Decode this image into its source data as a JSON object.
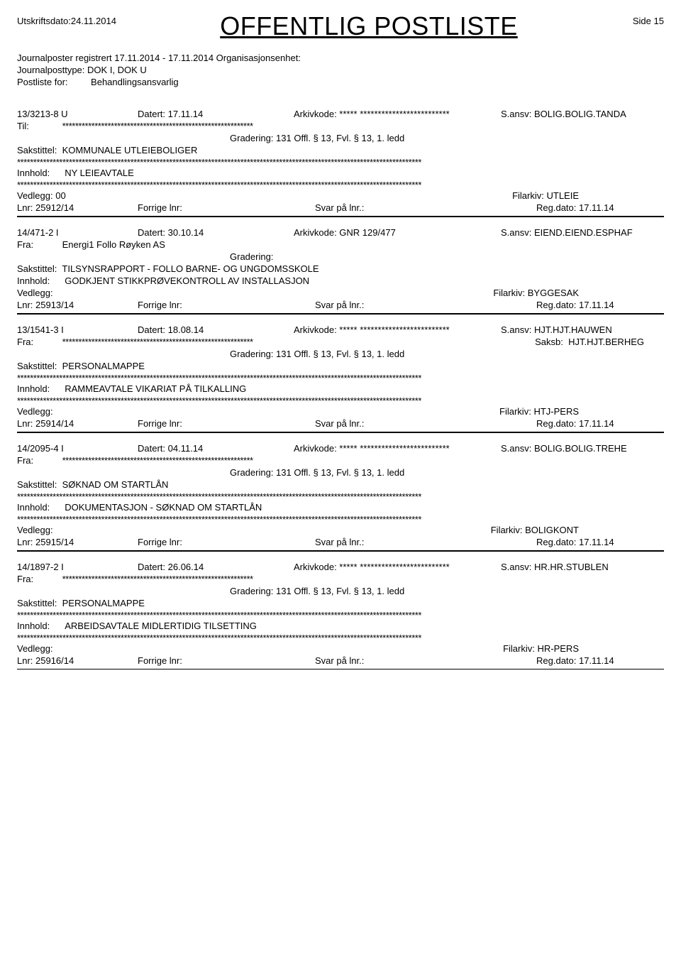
{
  "header": {
    "print_date_label": "Utskriftsdato:",
    "print_date": "24.11.2014",
    "title": "OFFENTLIG POSTLISTE",
    "page_label": "Side",
    "page_num": "15"
  },
  "meta": {
    "registered_label": "Journalposter registrert",
    "registered_range": "17.11.2014 - 17.11.2014",
    "org_label": "Organisasjonsenhet:",
    "jptype_label": "Journalposttype:",
    "jptype_value": "DOK I, DOK U",
    "postliste_label": "Postliste for:",
    "postliste_value": "Behandlingsansvarlig"
  },
  "labels": {
    "datert": "Datert:",
    "arkivkode": "Arkivkode:",
    "sansv": "S.ansv:",
    "til": "Til:",
    "fra": "Fra:",
    "gradering": "Gradering:",
    "sakstittel": "Sakstittel:",
    "innhold": "Innhold:",
    "vedlegg": "Vedlegg:",
    "filarkiv": "Filarkiv:",
    "lnr": "Lnr:",
    "forrige": "Forrige lnr:",
    "svar": "Svar på lnr.:",
    "regdato": "Reg.dato:",
    "saksb": "Saksb:"
  },
  "stars_short": "***********************************************************",
  "stars_med": "***** *************************",
  "stars_long": "*****************************************************************************************************************************",
  "entries": [
    {
      "id": "13/3213-8 U",
      "datert": "17.11.14",
      "arkivkode_stars": true,
      "arkivkode": "",
      "sansv": "BOLIG.BOLIG.TANDA",
      "party_label": "Til:",
      "party_stars": true,
      "gradering": "131 Offl. § 13, Fvl. § 13, 1. ledd",
      "sakstittel": "KOMMUNALE UTLEIEBOLIGER",
      "sak_stars": true,
      "innhold": "NY LEIEAVTALE",
      "innhold_stars": true,
      "vedlegg": "00",
      "filarkiv": "UTLEIE",
      "lnr": "25912/14",
      "regdato": "17.11.14",
      "thick": true
    },
    {
      "id": "14/471-2 I",
      "datert": "30.10.14",
      "arkivkode_stars": false,
      "arkivkode": "GNR 129/477",
      "sansv": "EIEND.EIEND.ESPHAF",
      "party_label": "Fra:",
      "party_value": "Energi1 Follo Røyken AS",
      "gradering": "",
      "sakstittel": "TILSYNSRAPPORT - FOLLO BARNE- OG UNGDOMSSKOLE",
      "sak_stars": false,
      "innhold": "GODKJENT STIKKPRØVEKONTROLL AV INSTALLASJON",
      "innhold_stars": false,
      "vedlegg": "",
      "filarkiv": "BYGGESAK",
      "lnr": "25913/14",
      "regdato": "17.11.14",
      "thick": true
    },
    {
      "id": "13/1541-3 I",
      "datert": "18.08.14",
      "arkivkode_stars": true,
      "arkivkode": "",
      "sansv": "HJT.HJT.HAUWEN",
      "party_label": "Fra:",
      "party_stars": true,
      "saksb": "HJT.HJT.BERHEG",
      "gradering": "131 Offl. § 13, Fvl. § 13, 1. ledd",
      "sakstittel": "PERSONALMAPPE",
      "sak_stars": true,
      "innhold": "RAMMEAVTALE VIKARIAT PÅ TILKALLING",
      "innhold_stars": true,
      "vedlegg": "",
      "filarkiv": "HTJ-PERS",
      "lnr": "25914/14",
      "regdato": "17.11.14",
      "thick": true
    },
    {
      "id": "14/2095-4 I",
      "datert": "04.11.14",
      "arkivkode_stars": true,
      "arkivkode": "",
      "sansv": "BOLIG.BOLIG.TREHE",
      "party_label": "Fra:",
      "party_stars": true,
      "gradering": "131 Offl. § 13, Fvl. § 13, 1. ledd",
      "sakstittel": "SØKNAD OM STARTLÅN",
      "sak_stars": true,
      "innhold": "DOKUMENTASJON - SØKNAD OM STARTLÅN",
      "innhold_stars": true,
      "vedlegg": "",
      "filarkiv": "BOLIGKONT",
      "lnr": "25915/14",
      "regdato": "17.11.14",
      "thick": true
    },
    {
      "id": "14/1897-2 I",
      "datert": "26.06.14",
      "arkivkode_stars": true,
      "arkivkode": "",
      "sansv": "HR.HR.STUBLEN",
      "party_label": "Fra:",
      "party_stars": true,
      "gradering": "131 Offl. § 13, Fvl. § 13, 1. ledd",
      "sakstittel": "PERSONALMAPPE",
      "sak_stars": true,
      "innhold": "ARBEIDSAVTALE MIDLERTIDIG TILSETTING",
      "innhold_stars": true,
      "vedlegg": "",
      "filarkiv": "HR-PERS",
      "lnr": "25916/14",
      "regdato": "17.11.14",
      "thick": false
    }
  ]
}
